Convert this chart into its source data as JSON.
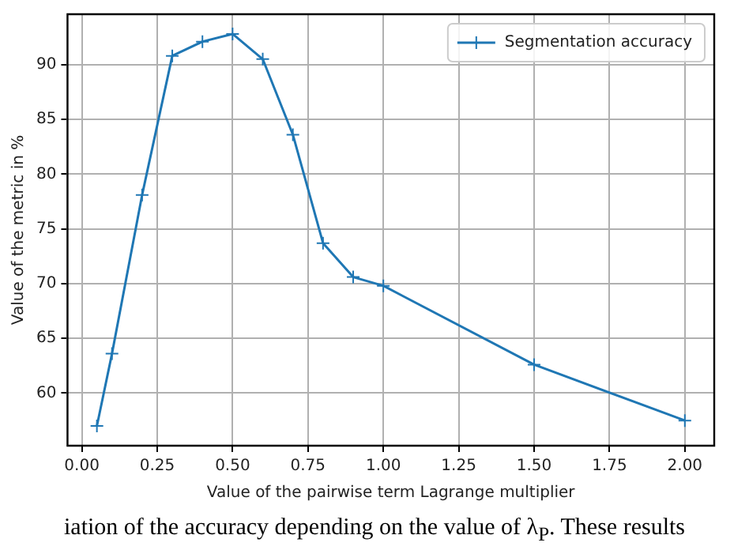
{
  "chart_data": {
    "type": "line",
    "xlabel": "Value of the pairwise term Lagrange multiplier",
    "ylabel": "Value of the metric in %",
    "x": [
      0.05,
      0.1,
      0.2,
      0.3,
      0.4,
      0.5,
      0.6,
      0.7,
      0.8,
      0.9,
      1.0,
      1.5,
      2.0
    ],
    "series": [
      {
        "name": "Segmentation accuracy",
        "color": "#1f77b4",
        "values": [
          57.0,
          63.6,
          78.1,
          90.8,
          92.1,
          92.8,
          90.5,
          83.6,
          73.7,
          70.6,
          69.8,
          62.6,
          57.5
        ]
      }
    ],
    "xlim": [
      -0.0475,
      2.0975
    ],
    "ylim": [
      55.2,
      94.6
    ],
    "xticks": [
      {
        "value": 0,
        "label": "0.00"
      },
      {
        "value": 0.25,
        "label": "0.25"
      },
      {
        "value": 0.5,
        "label": "0.50"
      },
      {
        "value": 0.75,
        "label": "0.75"
      },
      {
        "value": 1,
        "label": "1.00"
      },
      {
        "value": 1.25,
        "label": "1.25"
      },
      {
        "value": 1.5,
        "label": "1.50"
      },
      {
        "value": 1.75,
        "label": "1.75"
      },
      {
        "value": 2,
        "label": "2.00"
      }
    ],
    "yticks": [
      60,
      65,
      70,
      75,
      80,
      85,
      90
    ],
    "grid": true,
    "legend": "top right",
    "marker": "cross",
    "line_style": "solid",
    "annotations": [
      "iation of the accuracy depending on the value of λ$_{P}$. These results"
    ]
  }
}
